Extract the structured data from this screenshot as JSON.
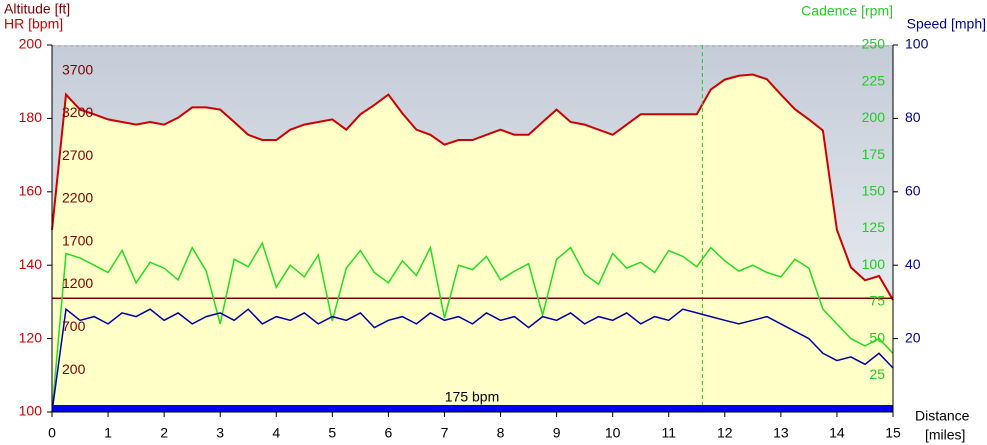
{
  "chart_data": {
    "type": "line",
    "x_label": "Distance",
    "x_unit": "[miles]",
    "xlim": [
      0,
      15
    ],
    "xticks": [
      0,
      1,
      2,
      3,
      4,
      5,
      6,
      7,
      8,
      9,
      10,
      11,
      12,
      13,
      14,
      15
    ],
    "marker_x": 11.6,
    "zone_label": "175 bpm",
    "axes": [
      {
        "id": "hr",
        "label": "HR [bpm]",
        "color": "#cc0000",
        "side": "left-outer",
        "lim": [
          100,
          200
        ],
        "ticks": [
          100,
          120,
          140,
          160,
          180,
          200
        ]
      },
      {
        "id": "alt",
        "label": "Altitude [ft]",
        "color": "#800000",
        "side": "left-inner",
        "lim": [
          -290,
          4000
        ],
        "ticks": [
          200,
          700,
          1200,
          1700,
          2200,
          2700,
          3200,
          3700
        ]
      },
      {
        "id": "cad",
        "label": "Cadence [rpm]",
        "color": "#22cc22",
        "side": "right-inner",
        "lim": [
          0,
          250
        ],
        "ticks": [
          25,
          50,
          75,
          100,
          125,
          150,
          175,
          200,
          225,
          250
        ]
      },
      {
        "id": "spd",
        "label": "Speed [mph]",
        "color": "#000099",
        "side": "right-outer",
        "lim": [
          0,
          100
        ],
        "ticks": [
          20,
          40,
          60,
          80,
          100
        ]
      }
    ],
    "x": [
      0,
      0.25,
      0.5,
      0.75,
      1,
      1.25,
      1.5,
      1.75,
      2,
      2.25,
      2.5,
      2.75,
      3,
      3.25,
      3.5,
      3.75,
      4,
      4.25,
      4.5,
      4.75,
      5,
      5.25,
      5.5,
      5.75,
      6,
      6.25,
      6.5,
      6.75,
      7,
      7.25,
      7.5,
      7.75,
      8,
      8.25,
      8.5,
      8.75,
      9,
      9.25,
      9.5,
      9.75,
      10,
      10.25,
      10.5,
      10.75,
      11,
      11.25,
      11.5,
      11.75,
      12,
      12.25,
      12.5,
      12.75,
      13,
      13.25,
      13.5,
      13.75,
      14,
      14.25,
      14.5,
      14.75,
      15
    ],
    "series": [
      {
        "name": "Altitude",
        "axis": "alt",
        "color": "#cc0000",
        "fill": "#ffffc8",
        "values": [
          1840,
          3420,
          3245,
          3190,
          3130,
          3100,
          3070,
          3100,
          3070,
          3150,
          3270,
          3270,
          3245,
          3100,
          2950,
          2890,
          2890,
          3010,
          3070,
          3100,
          3130,
          3010,
          3190,
          3300,
          3420,
          3200,
          3010,
          2950,
          2835,
          2890,
          2890,
          2950,
          3010,
          2950,
          2950,
          3100,
          3245,
          3100,
          3070,
          3010,
          2950,
          3070,
          3190,
          3190,
          3190,
          3190,
          3190,
          3480,
          3596,
          3640,
          3655,
          3600,
          3420,
          3250,
          3130,
          3000,
          1840,
          1400,
          1250,
          1300,
          1020
        ]
      },
      {
        "name": "HR",
        "axis": "hr",
        "color": "#800000",
        "values": [
          131,
          131,
          131,
          131,
          131,
          131,
          131,
          131,
          131,
          131,
          131,
          131,
          131,
          131,
          131,
          131,
          131,
          131,
          131,
          131,
          131,
          131,
          131,
          131,
          131,
          131,
          131,
          131,
          131,
          131,
          131,
          131,
          131,
          131,
          131,
          131,
          131,
          131,
          131,
          131,
          131,
          131,
          131,
          131,
          131,
          131,
          131,
          131,
          131,
          131,
          131,
          131,
          131,
          131,
          131,
          131,
          131,
          131,
          131,
          131,
          131
        ]
      },
      {
        "name": "Cadence",
        "axis": "cad",
        "color": "#22dd22",
        "values": [
          0,
          108,
          105,
          100,
          95,
          110,
          88,
          102,
          98,
          90,
          112,
          96,
          60,
          104,
          99,
          115,
          85,
          100,
          92,
          107,
          62,
          98,
          110,
          95,
          88,
          103,
          93,
          112,
          64,
          100,
          97,
          106,
          90,
          96,
          101,
          66,
          104,
          112,
          94,
          87,
          108,
          98,
          102,
          95,
          110,
          106,
          99,
          112,
          103,
          96,
          100,
          95,
          92,
          104,
          98,
          70,
          60,
          50,
          45,
          50,
          40
        ]
      },
      {
        "name": "Speed",
        "axis": "spd",
        "color": "#0000aa",
        "values": [
          0,
          28,
          25,
          26,
          24,
          27,
          26,
          28,
          25,
          27,
          24,
          26,
          27,
          25,
          28,
          24,
          26,
          25,
          27,
          24,
          26,
          25,
          27,
          23,
          25,
          26,
          24,
          27,
          25,
          26,
          24,
          27,
          25,
          26,
          23,
          26,
          25,
          27,
          24,
          26,
          25,
          27,
          24,
          26,
          25,
          28,
          27,
          26,
          25,
          24,
          25,
          26,
          24,
          22,
          20,
          16,
          14,
          15,
          13,
          16,
          12
        ]
      }
    ]
  }
}
